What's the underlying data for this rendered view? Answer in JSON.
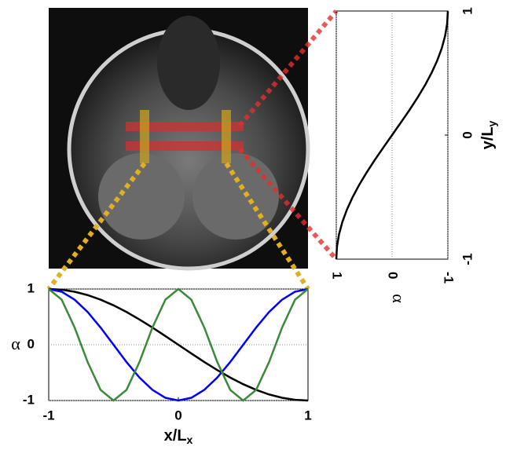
{
  "chart_data": [
    {
      "type": "line",
      "y_label": "α",
      "x_label": {
        "main": "x/L",
        "sub": "x"
      },
      "x": [
        -1,
        -0.9,
        -0.8,
        -0.7,
        -0.6,
        -0.5,
        -0.4,
        -0.3,
        -0.2,
        -0.1,
        0,
        0.1,
        0.2,
        0.3,
        0.4,
        0.5,
        0.6,
        0.7,
        0.8,
        0.9,
        1
      ],
      "series": [
        {
          "color": "#000000",
          "values": [
            1,
            0.988,
            0.951,
            0.891,
            0.809,
            0.707,
            0.588,
            0.454,
            0.309,
            0.156,
            0,
            -0.156,
            -0.309,
            -0.454,
            -0.588,
            -0.707,
            -0.809,
            -0.891,
            -0.951,
            -0.988,
            -1
          ]
        },
        {
          "color": "#0000ff",
          "values": [
            1,
            0.951,
            0.809,
            0.588,
            0.309,
            0,
            -0.309,
            -0.588,
            -0.809,
            -0.951,
            -1,
            -0.951,
            -0.809,
            -0.588,
            -0.309,
            0,
            0.309,
            0.588,
            0.809,
            0.951,
            1
          ]
        },
        {
          "color": "#3a8a3a",
          "values": [
            1,
            0.809,
            0.309,
            -0.309,
            -0.809,
            -1,
            -0.809,
            -0.309,
            0.309,
            0.809,
            1,
            0.809,
            0.309,
            -0.309,
            -0.809,
            -1,
            -0.809,
            -0.309,
            0.309,
            0.809,
            1
          ]
        }
      ],
      "xlim": [
        -1,
        1
      ],
      "xticks": [
        -1,
        0,
        1
      ],
      "ylim": [
        -1,
        1
      ],
      "yticks": [
        -1,
        0,
        1
      ],
      "grid": true
    },
    {
      "type": "line",
      "orientation": "vertical",
      "y_label": "α",
      "x_label": {
        "main": "y/L",
        "sub": "y"
      },
      "x": [
        -1,
        -0.9,
        -0.8,
        -0.7,
        -0.6,
        -0.5,
        -0.4,
        -0.3,
        -0.2,
        -0.1,
        0,
        0.1,
        0.2,
        0.3,
        0.4,
        0.5,
        0.6,
        0.7,
        0.8,
        0.9,
        1
      ],
      "series": [
        {
          "color": "#000000",
          "values": [
            1,
            0.988,
            0.951,
            0.891,
            0.809,
            0.707,
            0.588,
            0.454,
            0.309,
            0.156,
            0,
            -0.156,
            -0.309,
            -0.454,
            -0.588,
            -0.707,
            -0.809,
            -0.891,
            -0.951,
            -0.988,
            -1
          ]
        }
      ],
      "xlim": [
        -1,
        1
      ],
      "xticks": [
        -1,
        0,
        1
      ],
      "ylim": [
        1,
        -1
      ],
      "yticks": [
        1,
        0,
        -1
      ],
      "grid": true
    }
  ]
}
